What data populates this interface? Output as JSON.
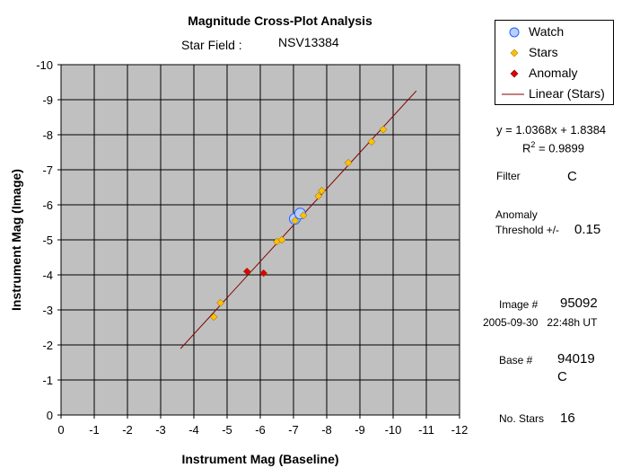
{
  "chart_data": {
    "type": "scatter",
    "title": "Magnitude Cross-Plot Analysis",
    "subtitle_label": "Star Field :",
    "subtitle_value": "NSV13384",
    "xlabel": "Instrument Mag (Baseline)",
    "ylabel": "Instrument Mag (Image)",
    "xlim": [
      0,
      -12
    ],
    "ylim": [
      0,
      -10
    ],
    "x_reversed": true,
    "y_reversed": true,
    "grid": true,
    "x_ticks": [
      "0",
      "-1",
      "-2",
      "-3",
      "-4",
      "-5",
      "-6",
      "-7",
      "-8",
      "-9",
      "-10",
      "-11",
      "-12"
    ],
    "y_ticks": [
      "0",
      "-1",
      "-2",
      "-3",
      "-4",
      "-5",
      "-6",
      "-7",
      "-8",
      "-9",
      "-10"
    ],
    "plot_bg": "#c0c0c0",
    "legend_placement": "top-right",
    "series": [
      {
        "name": "Watch",
        "marker": "circle",
        "color": "#1f5fff",
        "fill": "#b8d0ff",
        "points": [
          [
            -7.04,
            -5.6
          ],
          [
            -7.2,
            -5.75
          ]
        ]
      },
      {
        "name": "Stars",
        "marker": "diamond",
        "color": "#ffc000",
        "points": [
          [
            -4.6,
            -2.8
          ],
          [
            -4.8,
            -3.2
          ],
          [
            -6.5,
            -4.95
          ],
          [
            -6.65,
            -5.0
          ],
          [
            -7.05,
            -5.55
          ],
          [
            -7.3,
            -5.7
          ],
          [
            -7.75,
            -6.25
          ],
          [
            -7.85,
            -6.4
          ],
          [
            -8.65,
            -7.2
          ],
          [
            -9.35,
            -7.8
          ],
          [
            -9.7,
            -8.15
          ]
        ]
      },
      {
        "name": "Anomaly",
        "marker": "diamond",
        "color": "#e00000",
        "points": [
          [
            -5.6,
            -4.1
          ],
          [
            -6.1,
            -4.05
          ]
        ]
      },
      {
        "name": "Linear (Stars)",
        "type": "line",
        "color": "#800000",
        "x_range": [
          -3.6,
          -10.7
        ],
        "slope": 1.0368,
        "intercept": 1.8384
      }
    ]
  },
  "fit": {
    "equation": "y = 1.0368x + 1.8384",
    "r2_prefix": "R",
    "r2_exp": "2",
    "r2_value": " = 0.9899"
  },
  "info": {
    "filter_label": "Filter",
    "filter_value": "C",
    "anomaly_label_1": "Anomaly",
    "anomaly_label_2": "Threshold +/-",
    "anomaly_value": "0.15",
    "image_label": "Image #",
    "image_value": "95092",
    "datetime": "2005-09-30   22:48h UT",
    "base_label": "Base #",
    "base_value": "94019",
    "base_filter": "C",
    "nstars_label": "No. Stars",
    "nstars_value": "16"
  }
}
